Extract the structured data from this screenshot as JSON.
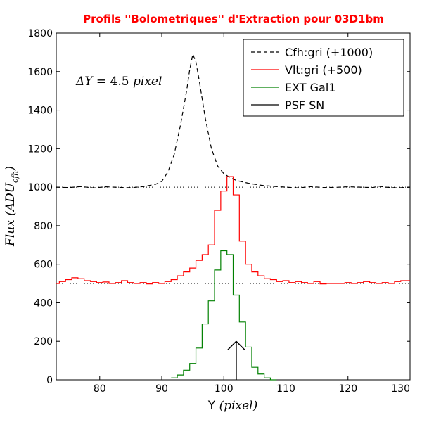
{
  "chart_data": {
    "type": "line",
    "title": "Profils ''Bolometriques'' d'Extraction pour 03D1bm",
    "xlabel_prefix": "Y",
    "xlabel_math": "(pixel)",
    "ylabel_prefix": "Flux",
    "ylabel_math": "(ADU",
    "ylabel_sub": "cfh",
    "ylabel_close": ")",
    "annotation_lhs": "ΔY",
    "annotation_eq": " = 4.5 ",
    "annotation_unit": "pixel",
    "xlim": [
      73,
      130
    ],
    "ylim": [
      0,
      1800
    ],
    "xticks": [
      80,
      90,
      100,
      110,
      120,
      130
    ],
    "xtick_labels": [
      "80",
      "90",
      "100",
      "110",
      "120",
      "130"
    ],
    "yticks": [
      0,
      200,
      400,
      600,
      800,
      1000,
      1200,
      1400,
      1600,
      1800
    ],
    "ytick_labels": [
      "0",
      "200",
      "400",
      "600",
      "800",
      "1000",
      "1200",
      "1400",
      "1600",
      "1800"
    ],
    "reference_lines": [
      1000,
      500
    ],
    "legend_position": "top-right",
    "series": [
      {
        "name": "Cfh:gri (+1000)",
        "color": "#000000",
        "style": "dashed",
        "x": [
          73,
          75,
          77,
          79,
          81,
          83,
          85,
          87,
          89,
          90,
          91,
          92,
          93,
          94,
          94.5,
          95,
          95.5,
          96,
          97,
          98,
          99,
          100,
          101,
          102,
          104,
          106,
          108,
          110,
          112,
          114,
          116,
          118,
          120,
          122,
          124,
          125,
          126,
          128,
          130
        ],
        "y": [
          1000,
          998,
          1003,
          996,
          1002,
          999,
          997,
          1003,
          1015,
          1030,
          1080,
          1170,
          1320,
          1500,
          1610,
          1690,
          1650,
          1560,
          1360,
          1200,
          1110,
          1070,
          1050,
          1035,
          1020,
          1010,
          1004,
          1000,
          996,
          1003,
          998,
          999,
          1002,
          1000,
          998,
          1005,
          1000,
          996,
          1000
        ]
      },
      {
        "name": "Vlt:gri (+500)",
        "color": "#ff0000",
        "style": "steps",
        "x": [
          73,
          74,
          75,
          76,
          77,
          78,
          79,
          80,
          81,
          82,
          83,
          84,
          85,
          86,
          87,
          88,
          89,
          90,
          91,
          92,
          93,
          94,
          95,
          96,
          97,
          98,
          99,
          100,
          101,
          102,
          103,
          104,
          105,
          106,
          107,
          108,
          109,
          110,
          111,
          112,
          113,
          114,
          115,
          116,
          117,
          118,
          119,
          120,
          121,
          122,
          123,
          124,
          125,
          126,
          127,
          128,
          129,
          130
        ],
        "y": [
          500,
          510,
          520,
          530,
          525,
          515,
          510,
          505,
          508,
          500,
          505,
          515,
          505,
          500,
          505,
          498,
          505,
          500,
          510,
          520,
          540,
          560,
          580,
          620,
          650,
          700,
          880,
          980,
          1055,
          960,
          720,
          600,
          560,
          540,
          525,
          520,
          510,
          515,
          505,
          510,
          505,
          500,
          510,
          498,
          500,
          500,
          500,
          505,
          500,
          505,
          510,
          505,
          500,
          505,
          500,
          510,
          515,
          515
        ]
      },
      {
        "name": "EXT Gal1",
        "color": "#008000",
        "style": "steps",
        "x": [
          92,
          93,
          94,
          95,
          96,
          97,
          98,
          99,
          100,
          101,
          102,
          103,
          104,
          105,
          106,
          107,
          108
        ],
        "y": [
          10,
          25,
          50,
          85,
          165,
          290,
          410,
          570,
          670,
          650,
          440,
          300,
          170,
          65,
          30,
          10,
          0
        ]
      },
      {
        "name": "PSF SN",
        "color": "#000000",
        "style": "arrow",
        "x": [
          102,
          102
        ],
        "y": [
          0,
          200
        ]
      }
    ]
  }
}
